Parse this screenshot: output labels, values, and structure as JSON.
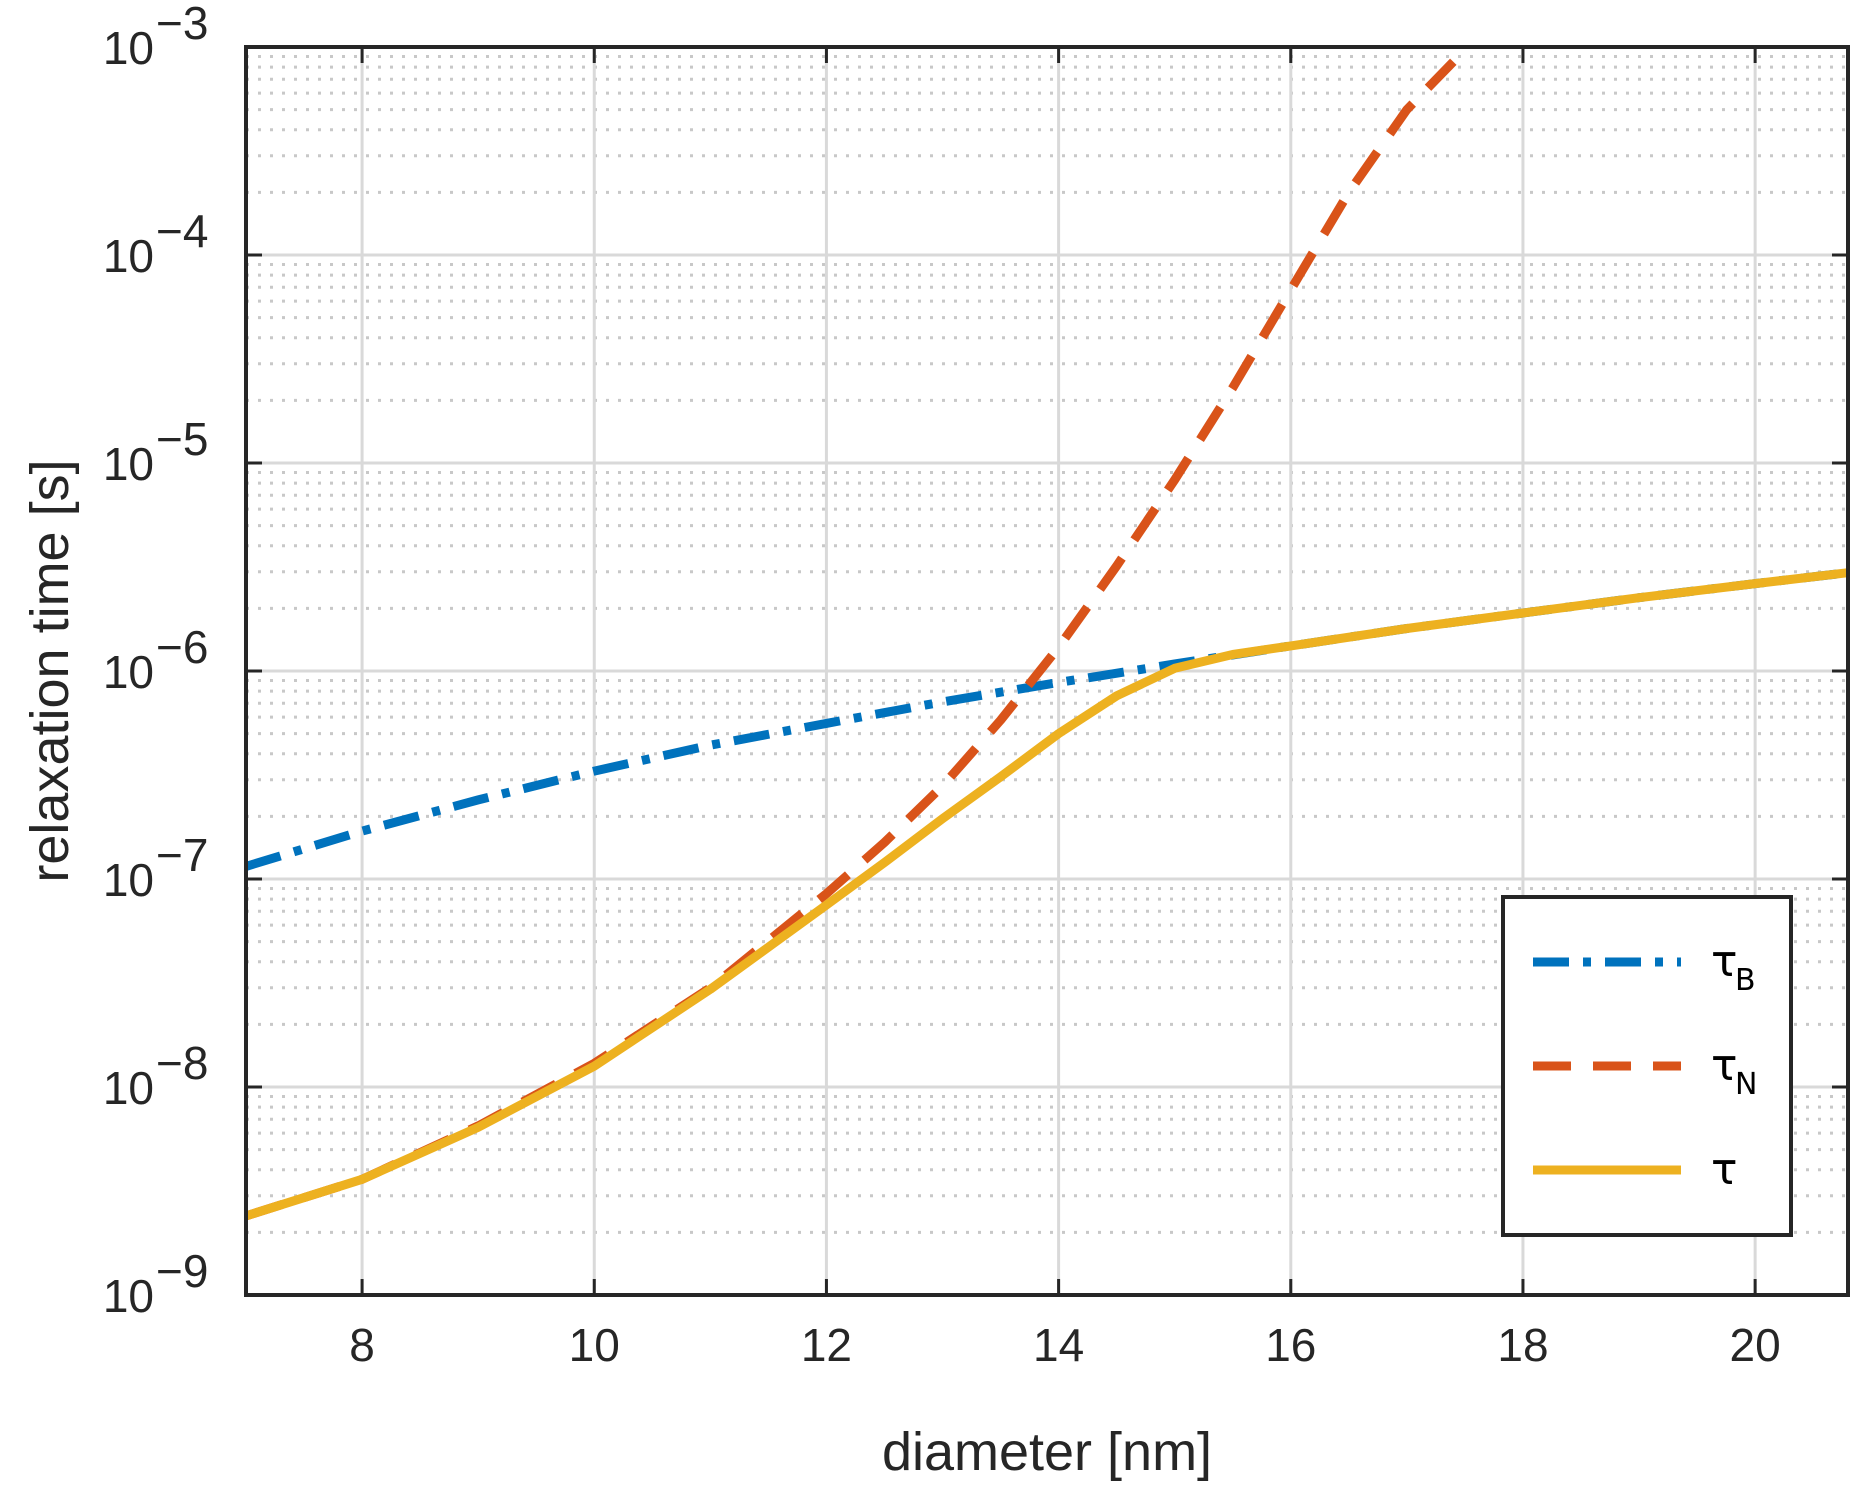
{
  "chart_data": {
    "type": "line",
    "xlabel": "diameter [nm]",
    "ylabel": "relaxation time [s]",
    "xlim": [
      7,
      20.8
    ],
    "ylim": [
      1e-09,
      0.001
    ],
    "y_scale": "log",
    "grid": true,
    "legend_position": "bottom-right",
    "x_ticks": [
      {
        "value": 8,
        "label": "8"
      },
      {
        "value": 10,
        "label": "10"
      },
      {
        "value": 12,
        "label": "12"
      },
      {
        "value": 14,
        "label": "14"
      },
      {
        "value": 16,
        "label": "16"
      },
      {
        "value": 18,
        "label": "18"
      },
      {
        "value": 20,
        "label": "20"
      }
    ],
    "y_ticks": [
      {
        "value": 1e-09,
        "base": "10",
        "exp": "−9"
      },
      {
        "value": 1e-08,
        "base": "10",
        "exp": "−8"
      },
      {
        "value": 1e-07,
        "base": "10",
        "exp": "−7"
      },
      {
        "value": 1e-06,
        "base": "10",
        "exp": "−6"
      },
      {
        "value": 1e-05,
        "base": "10",
        "exp": "−5"
      },
      {
        "value": 0.0001,
        "base": "10",
        "exp": "−4"
      },
      {
        "value": 0.001,
        "base": "10",
        "exp": "−3"
      }
    ],
    "series": [
      {
        "name": "τ",
        "name_sub": "B",
        "color": "#0072BD",
        "style": "dashdot",
        "x": [
          7,
          8,
          9,
          10,
          11,
          12,
          13,
          14,
          15,
          16,
          17,
          18,
          19,
          20,
          20.8
        ],
        "y": [
          1.15e-07,
          1.7e-07,
          2.4e-07,
          3.3e-07,
          4.4e-07,
          5.6e-07,
          7.1e-07,
          8.8e-07,
          1.08e-06,
          1.32e-06,
          1.6e-06,
          1.9e-06,
          2.25e-06,
          2.63e-06,
          2.97e-06
        ]
      },
      {
        "name": "τ",
        "name_sub": "N",
        "color": "#D95319",
        "style": "dashed",
        "x": [
          7,
          8,
          9,
          10,
          11,
          12,
          12.5,
          13,
          13.5,
          14,
          14.5,
          15,
          15.5,
          16,
          16.5,
          17,
          17.4
        ],
        "y": [
          2.4e-09,
          3.6e-09,
          6.5e-09,
          1.3e-08,
          3e-08,
          8.5e-08,
          1.5e-07,
          2.8e-07,
          5.8e-07,
          1.3e-06,
          3.2e-06,
          8.3e-06,
          2.3e-05,
          6.8e-05,
          0.0002,
          0.0005,
          0.00085
        ]
      },
      {
        "name": "τ",
        "name_sub": "",
        "color": "#EDB120",
        "style": "solid",
        "x": [
          7,
          8,
          9,
          10,
          11,
          12,
          12.5,
          13,
          13.5,
          14,
          14.5,
          15,
          15.5,
          16,
          17,
          18,
          19,
          20,
          20.8
        ],
        "y": [
          2.4e-09,
          3.6e-09,
          6.4e-09,
          1.26e-08,
          2.95e-08,
          7.5e-08,
          1.2e-07,
          1.95e-07,
          3.1e-07,
          5e-07,
          7.6e-07,
          1.03e-06,
          1.2e-06,
          1.32e-06,
          1.6e-06,
          1.9e-06,
          2.25e-06,
          2.63e-06,
          2.97e-06
        ]
      }
    ]
  }
}
